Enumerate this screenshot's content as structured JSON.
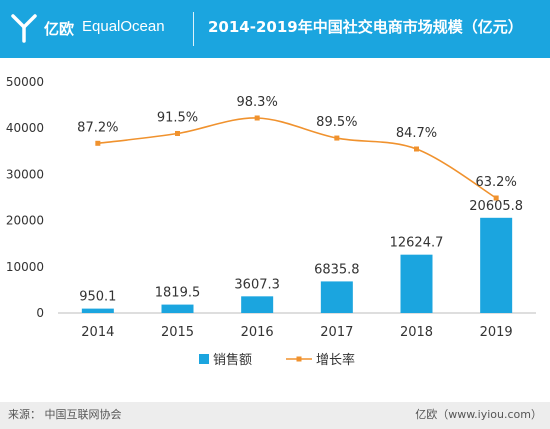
{
  "header": {
    "brand_cn": "亿欧",
    "brand_en": "EqualOcean",
    "title": "2014-2019年中国社交电商市场规模（亿元）"
  },
  "footer": {
    "source": "来源：  中国互联网协会",
    "site": "亿欧（www.iyiou.com）"
  },
  "colors": {
    "header_bg": "#1ba5df",
    "bar": "#1ba5df",
    "line": "#f0922e",
    "footer_bg": "#ededed"
  },
  "chart_data": {
    "type": "bar",
    "categories": [
      "2014",
      "2015",
      "2016",
      "2017",
      "2018",
      "2019"
    ],
    "ylim": [
      0,
      50000
    ],
    "yticks": [
      "0",
      "10000",
      "20000",
      "30000",
      "40000",
      "50000"
    ],
    "grid": false,
    "legend_position": "bottom-center",
    "series": [
      {
        "name": "销售额",
        "type": "bar",
        "values": [
          950.1,
          1819.5,
          3607.3,
          6835.8,
          12624.7,
          20605.8
        ],
        "labels": [
          "950.1",
          "1819.5",
          "3607.3",
          "6835.8",
          "12624.7",
          "20605.8"
        ]
      },
      {
        "name": "增长率",
        "type": "line",
        "axis": "secondary",
        "values": [
          87.2,
          91.5,
          98.3,
          89.5,
          84.7,
          63.2
        ],
        "labels": [
          "87.2%",
          "91.5%",
          "98.3%",
          "89.5%",
          "84.7%",
          "63.2%"
        ]
      }
    ]
  }
}
